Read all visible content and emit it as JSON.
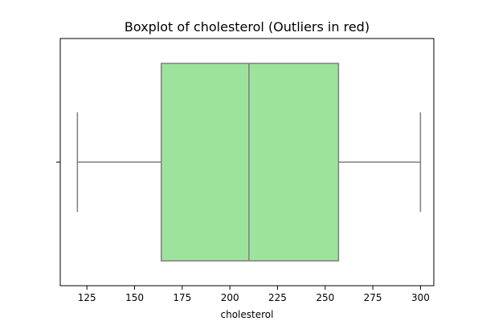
{
  "chart_data": {
    "type": "box",
    "title": "Boxplot of cholesterol (Outliers in red)",
    "xlabel": "cholesterol",
    "ylabel": "",
    "orientation": "horizontal",
    "xlim": [
      111,
      307
    ],
    "x_ticks": [
      125,
      150,
      175,
      200,
      225,
      250,
      275,
      300
    ],
    "box": {
      "whisker_low": 120,
      "q1": 164,
      "median": 210,
      "q3": 257,
      "whisker_high": 300,
      "outliers": []
    },
    "grid": false,
    "colors": {
      "box_fill": "#9de39c",
      "lines": "#7f7f7f",
      "axes": "#000000",
      "outlier": "#ff0000"
    }
  }
}
